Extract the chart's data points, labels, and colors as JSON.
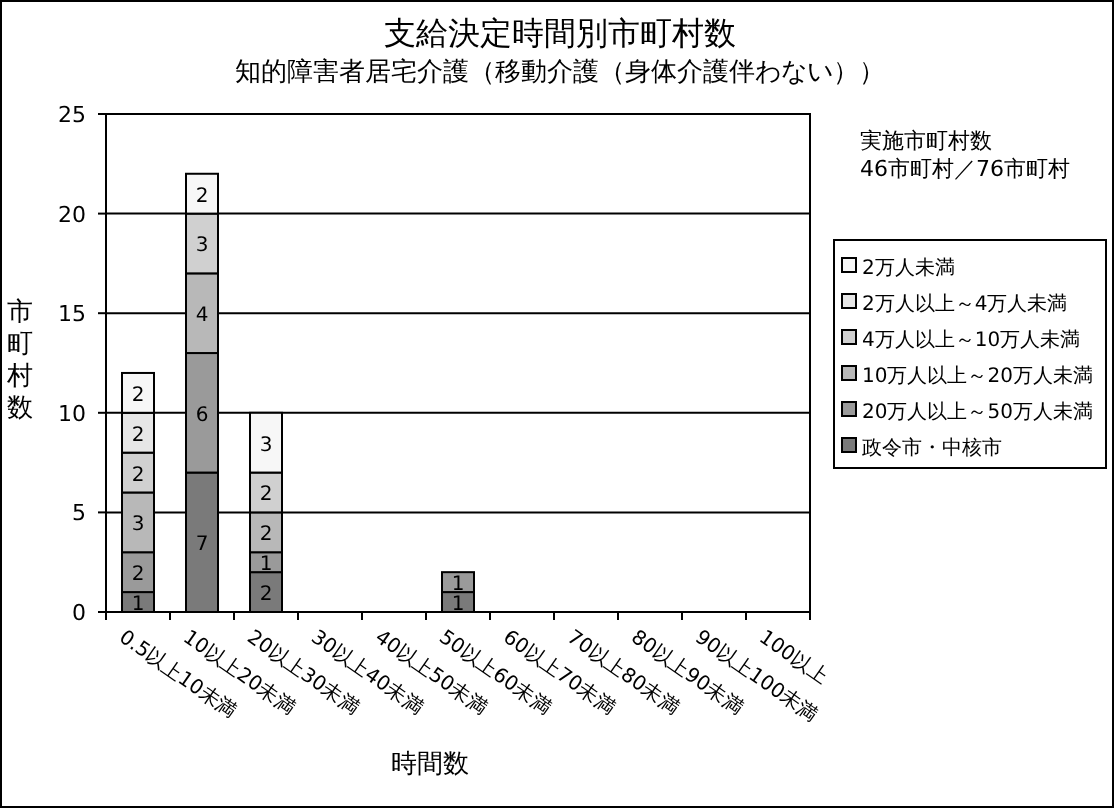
{
  "chart_data": {
    "type": "bar",
    "title": "支給決定時間別市町村数",
    "subtitle": "知的障害者居宅介護（移動介護（身体介護伴わない））",
    "xlabel": "時間数",
    "ylabel": "市町村数",
    "categories": [
      "0.5以上10未満",
      "10以上20未満",
      "20以上30未満",
      "30以上40未満",
      "40以上50未満",
      "50以上60未満",
      "60以上70未満",
      "70以上80未満",
      "80以上90未満",
      "90以上100未満",
      "100以上"
    ],
    "series": [
      {
        "name": "政令市・中核市",
        "color": "#7a7a7a",
        "values": [
          1,
          7,
          2,
          null,
          null,
          1,
          null,
          null,
          null,
          null,
          null
        ]
      },
      {
        "name": "20万人以上～50万人未満",
        "color": "#9a9a9a",
        "values": [
          2,
          6,
          1,
          null,
          null,
          1,
          null,
          null,
          null,
          null,
          null
        ]
      },
      {
        "name": "10万人以上～20万人未満",
        "color": "#b8b8b8",
        "values": [
          3,
          4,
          2,
          null,
          null,
          null,
          null,
          null,
          null,
          null,
          null
        ]
      },
      {
        "name": "4万人以上～10万人未満",
        "color": "#d0d0d0",
        "values": [
          2,
          3,
          2,
          null,
          null,
          null,
          null,
          null,
          null,
          null,
          null
        ]
      },
      {
        "name": "2万人以上～4万人未満",
        "color": "#e6e6e6",
        "values": [
          2,
          null,
          null,
          null,
          null,
          null,
          null,
          null,
          null,
          null,
          null
        ]
      },
      {
        "name": "2万人未満",
        "color": "#f7f7f7",
        "values": [
          2,
          2,
          3,
          null,
          null,
          null,
          null,
          null,
          null,
          null,
          null
        ]
      }
    ],
    "stacked": true,
    "data_labels": true,
    "ylim": [
      0,
      25
    ],
    "yticks": [
      0,
      5,
      10,
      15,
      20,
      25
    ],
    "grid": "y",
    "legend": "right",
    "annotations": [
      "実施市町村数",
      "46市町村／76市町村"
    ]
  }
}
